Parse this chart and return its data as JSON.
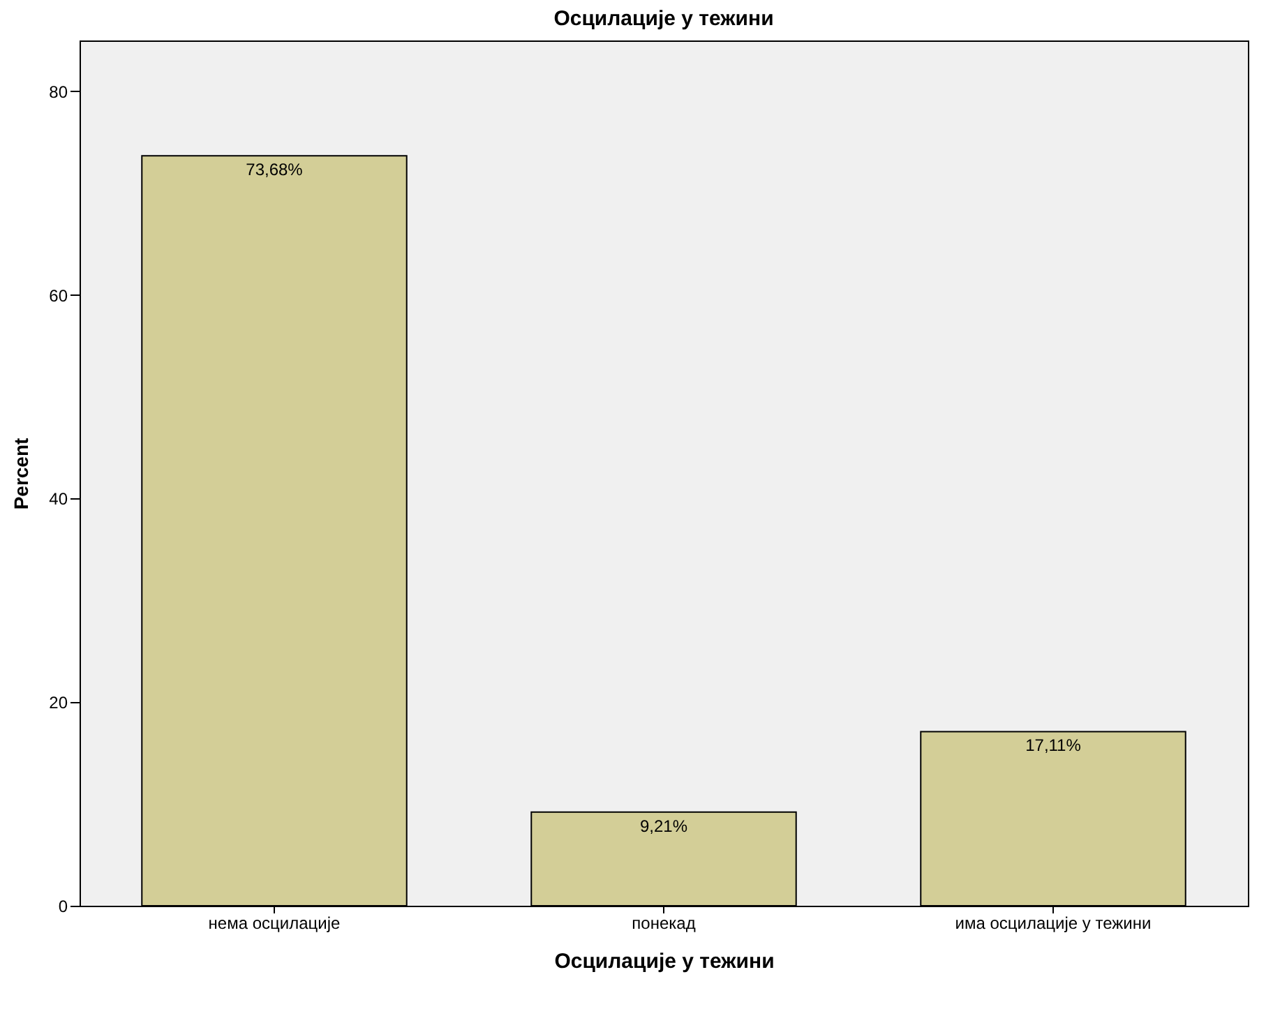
{
  "chart_data": {
    "type": "bar",
    "title": "Осцилације у тежини",
    "xlabel": "Осцилације у тежини",
    "ylabel": "Percent",
    "categories": [
      "нема осцилације",
      "понекад",
      "има осцилације у тежини"
    ],
    "values": [
      73.68,
      9.21,
      17.11
    ],
    "color": "#d3ce97",
    "value_labels": [
      "73,68%",
      "9,21%",
      "17,11%"
    ],
    "ylim": [
      0,
      85
    ],
    "yticks": [
      0,
      20,
      40,
      60,
      80
    ]
  }
}
